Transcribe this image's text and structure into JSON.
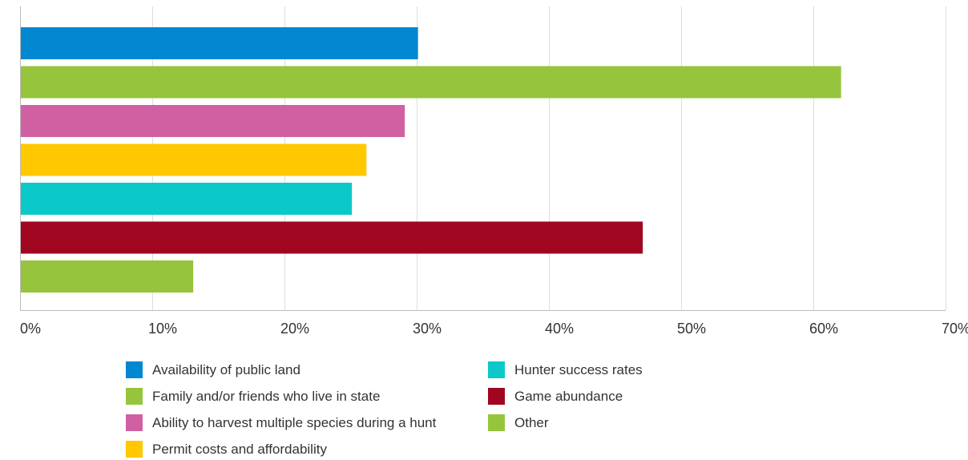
{
  "chart_data": {
    "type": "bar",
    "orientation": "horizontal",
    "title": "",
    "xlabel": "",
    "ylabel": "",
    "xlim": [
      0,
      70
    ],
    "x_ticks": [
      0,
      10,
      20,
      30,
      40,
      50,
      60,
      70
    ],
    "x_tick_labels": [
      "0%",
      "10%",
      "20%",
      "30%",
      "40%",
      "50%",
      "60%",
      "70%"
    ],
    "grid": true,
    "legend_placement": "bottom",
    "categories": [
      "Availability of public land",
      "Family and/or friends who live in state",
      "Ability to harvest multiple species during a hunt",
      "Permit costs and affordability",
      "Hunter success rates",
      "Game abundance",
      "Other"
    ],
    "values": [
      30.1,
      62.1,
      29.1,
      26.2,
      25.1,
      47.1,
      13.1
    ],
    "colors": [
      "#0288d1",
      "#96c43d",
      "#d160a3",
      "#ffc800",
      "#0bc9c9",
      "#a0061f",
      "#96c43d"
    ],
    "grid_color": "#dddddd",
    "axis_color": "#bbbbbb"
  }
}
